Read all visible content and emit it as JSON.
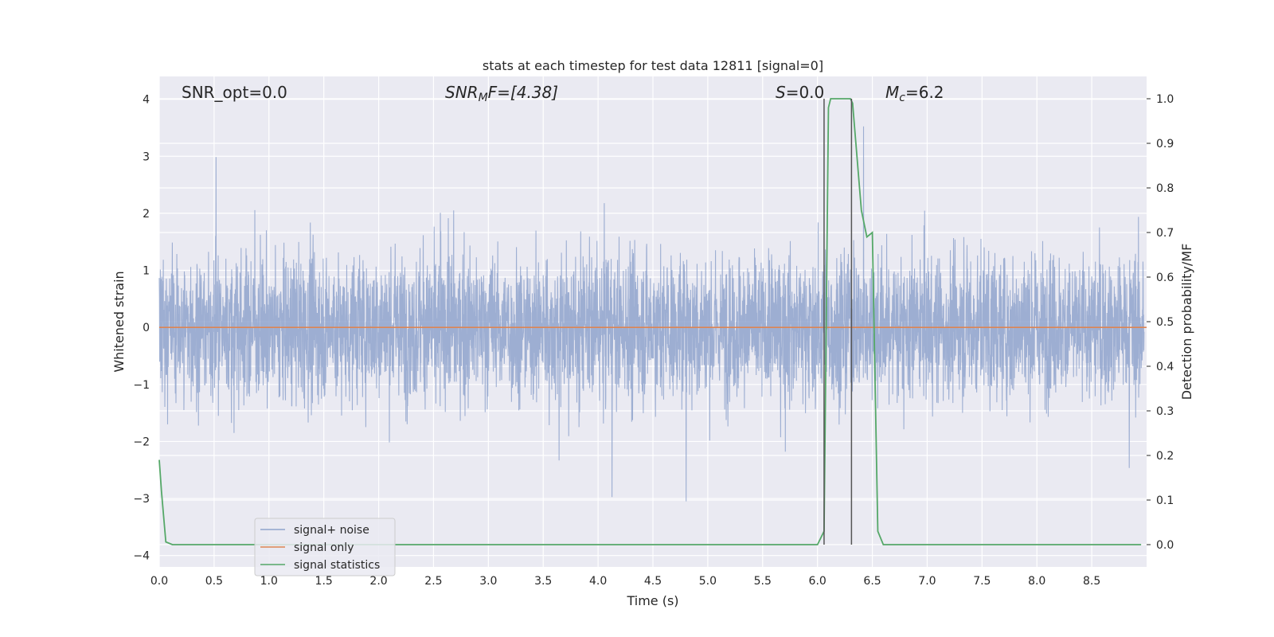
{
  "chart_data": {
    "type": "line",
    "title": "stats at each timestep for test data 12811 [signal=0]",
    "xlabel": "Time (s)",
    "ylabel": "Whitened strain",
    "ylabel_right": "Detection probability/MF",
    "xlim": [
      0.0,
      9.0
    ],
    "ylim": [
      -4.2,
      4.4
    ],
    "ylim_right": [
      -0.05,
      1.05
    ],
    "x_ticks": [
      "0.0",
      "0.5",
      "1.0",
      "1.5",
      "2.0",
      "2.5",
      "3.0",
      "3.5",
      "4.0",
      "4.5",
      "5.0",
      "5.5",
      "6.0",
      "6.5",
      "7.0",
      "7.5",
      "8.0",
      "8.5"
    ],
    "y_ticks": [
      "4",
      "3",
      "2",
      "1",
      "0",
      "−1",
      "−2",
      "−3",
      "−4"
    ],
    "y_ticks_right": [
      "1.0",
      "0.9",
      "0.8",
      "0.7",
      "0.6",
      "0.5",
      "0.4",
      "0.3",
      "0.2",
      "0.1",
      "0.0"
    ],
    "grid": true,
    "legend_position": "lower-left",
    "annotations": {
      "snr_opt": "SNR_opt=0.0",
      "snr_mf_a": "SNR",
      "snr_mf_sub": "M",
      "snr_mf_b": "F=[4.38]",
      "s_italic": "S",
      "s_rest": "=0.0",
      "mc_italic": "M",
      "mc_sub": "c",
      "mc_rest": "=6.2"
    },
    "vlines": [
      6.06,
      6.31
    ],
    "series": [
      {
        "name": "signal+ noise",
        "color": "#8fa3cc",
        "noise": {
          "sample_rate": 512,
          "typical_range": [
            -1.5,
            1.7
          ],
          "peak_max": 3.9,
          "peak_min": -3.8
        }
      },
      {
        "name": "signal only",
        "color": "#dd8452",
        "x": [
          0.0,
          9.0
        ],
        "y": [
          0.0,
          0.0
        ]
      },
      {
        "name": "signal statistics",
        "color": "#55a868",
        "x": [
          0.0,
          0.02,
          0.06,
          0.12,
          0.2,
          1.0,
          3.0,
          5.0,
          5.9,
          6.0,
          6.06,
          6.1,
          6.12,
          6.2,
          6.3,
          6.32,
          6.4,
          6.45,
          6.5,
          6.55,
          6.6,
          6.7,
          7.0,
          8.0,
          8.95
        ],
        "y": [
          0.19,
          0.12,
          0.006,
          0.0,
          0.0,
          0.0,
          0.0,
          0.0,
          0.0,
          0.0,
          0.03,
          0.98,
          1.0,
          1.0,
          1.0,
          0.99,
          0.75,
          0.69,
          0.7,
          0.03,
          0.0,
          0.0,
          0.0,
          0.0,
          0.0
        ]
      }
    ]
  }
}
